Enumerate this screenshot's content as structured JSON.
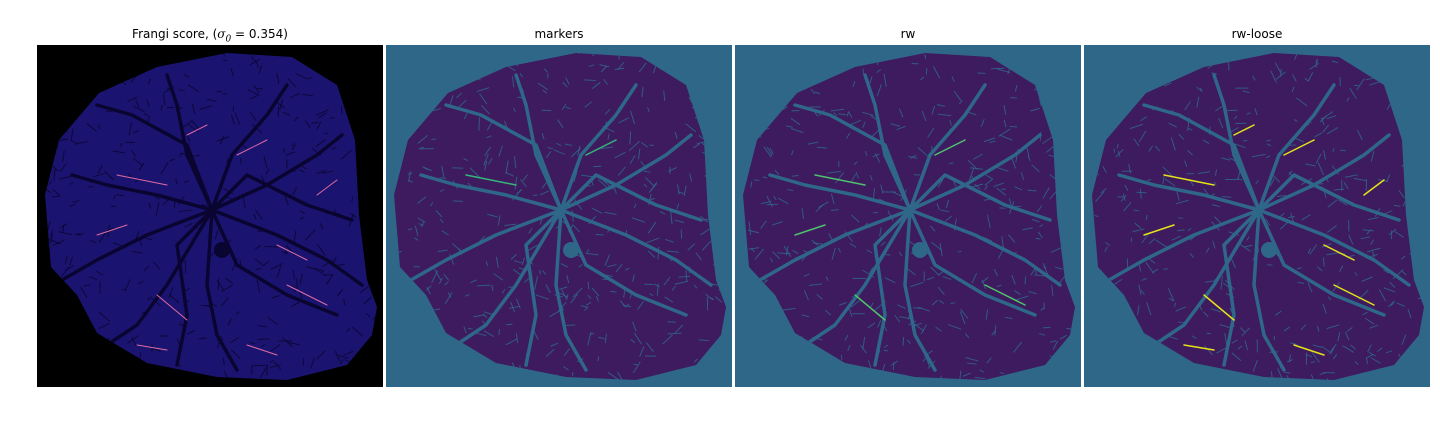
{
  "figure": {
    "panels": [
      {
        "id": "frangi",
        "title_prefix": "Frangi score, (",
        "title_symbol": "σ",
        "title_subscript": "0",
        "title_suffix": " = 0.354)",
        "background_color": "#000000",
        "tissue_color": "#1a1470",
        "vessel_color": "#0a0530",
        "highlight_color": "#e06aa0"
      },
      {
        "id": "markers",
        "title": "markers",
        "background_color": "#2f6789",
        "tissue_color": "#3e1a5e",
        "vessel_color": "#2f6789",
        "highlight_color": "#35b779"
      },
      {
        "id": "rw",
        "title": "rw",
        "background_color": "#2f6789",
        "tissue_color": "#3e1a5e",
        "vessel_color": "#2f6789",
        "highlight_color": "#4ec26c"
      },
      {
        "id": "rw-loose",
        "title": "rw-loose",
        "background_color": "#2f6789",
        "tissue_color": "#3e1a5e",
        "vessel_color": "#2f6789",
        "highlight_color": "#e2e418"
      }
    ]
  }
}
